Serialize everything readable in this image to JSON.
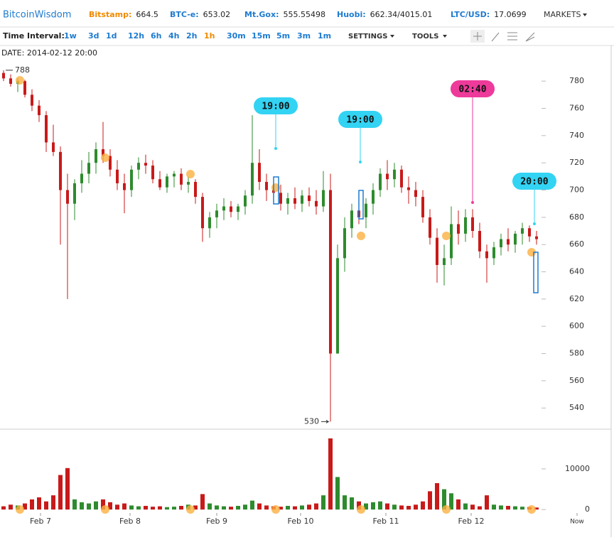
{
  "header": {
    "brand": "BitcoinWisdom",
    "tickers": [
      {
        "label": "Bitstamp:",
        "value": "664.5",
        "color": "#f08a00"
      },
      {
        "label": "BTC-e:",
        "value": "653.02",
        "color": "#1e7bd0"
      },
      {
        "label": "Mt.Gox:",
        "value": "555.55498",
        "color": "#1e7bd0"
      },
      {
        "label": "Huobi:",
        "value": "662.34/4015.01",
        "color": "#1e7bd0"
      },
      {
        "label": "LTC/USD:",
        "value": "17.0699",
        "color": "#1e7bd0"
      }
    ],
    "markets": "MARKETS"
  },
  "toolbar": {
    "label": "Time Interval:",
    "intervals": [
      "1w",
      "3d",
      "1d",
      "12h",
      "6h",
      "4h",
      "2h",
      "1h",
      "30m",
      "15m",
      "5m",
      "3m",
      "1m"
    ],
    "active_index": 7,
    "settings": "SETTINGS",
    "tools": "TOOLS"
  },
  "chart_data": {
    "type": "candlestick",
    "date_label": "DATE: 2014-02-12 20:00",
    "up_color": "#2e8b2e",
    "down_color": "#c81a1a",
    "candles": [
      [
        786,
        788,
        780,
        782
      ],
      [
        782,
        785,
        776,
        778
      ],
      [
        778,
        782,
        772,
        780
      ],
      [
        780,
        781,
        768,
        770
      ],
      [
        770,
        774,
        758,
        762
      ],
      [
        762,
        766,
        750,
        755
      ],
      [
        755,
        758,
        728,
        735
      ],
      [
        735,
        748,
        725,
        728
      ],
      [
        728,
        732,
        660,
        700
      ],
      [
        700,
        712,
        620,
        690
      ],
      [
        690,
        708,
        678,
        705
      ],
      [
        705,
        722,
        698,
        712
      ],
      [
        712,
        728,
        705,
        720
      ],
      [
        720,
        735,
        712,
        730
      ],
      [
        730,
        750,
        720,
        725
      ],
      [
        725,
        730,
        710,
        715
      ],
      [
        715,
        722,
        700,
        705
      ],
      [
        705,
        712,
        683,
        700
      ],
      [
        700,
        718,
        695,
        715
      ],
      [
        715,
        724,
        708,
        720
      ],
      [
        720,
        726,
        712,
        718
      ],
      [
        718,
        722,
        705,
        708
      ],
      [
        708,
        714,
        700,
        702
      ],
      [
        702,
        712,
        698,
        710
      ],
      [
        710,
        714,
        702,
        712
      ],
      [
        712,
        716,
        700,
        704
      ],
      [
        704,
        710,
        698,
        706
      ],
      [
        706,
        708,
        690,
        695
      ],
      [
        695,
        698,
        662,
        672
      ],
      [
        672,
        684,
        665,
        680
      ],
      [
        680,
        690,
        672,
        685
      ],
      [
        685,
        694,
        678,
        688
      ],
      [
        688,
        692,
        680,
        684
      ],
      [
        684,
        690,
        678,
        688
      ],
      [
        688,
        700,
        682,
        696
      ],
      [
        696,
        755,
        690,
        720
      ],
      [
        720,
        730,
        700,
        706
      ],
      [
        706,
        712,
        692,
        700
      ],
      [
        700,
        708,
        692,
        698
      ],
      [
        698,
        704,
        685,
        690
      ],
      [
        690,
        698,
        682,
        694
      ],
      [
        694,
        702,
        686,
        690
      ],
      [
        690,
        700,
        684,
        696
      ],
      [
        696,
        702,
        688,
        692
      ],
      [
        692,
        700,
        682,
        688
      ],
      [
        688,
        714,
        684,
        700
      ],
      [
        700,
        712,
        530,
        580
      ],
      [
        580,
        660,
        580,
        650
      ],
      [
        650,
        680,
        640,
        672
      ],
      [
        672,
        690,
        665,
        685
      ],
      [
        685,
        696,
        675,
        680
      ],
      [
        680,
        694,
        672,
        690
      ],
      [
        690,
        705,
        682,
        700
      ],
      [
        700,
        716,
        695,
        712
      ],
      [
        712,
        722,
        700,
        708
      ],
      [
        708,
        720,
        702,
        715
      ],
      [
        715,
        718,
        698,
        702
      ],
      [
        702,
        710,
        690,
        700
      ],
      [
        700,
        706,
        688,
        695
      ],
      [
        695,
        700,
        676,
        680
      ],
      [
        680,
        686,
        660,
        665
      ],
      [
        665,
        672,
        632,
        645
      ],
      [
        645,
        660,
        630,
        650
      ],
      [
        650,
        688,
        645,
        675
      ],
      [
        675,
        685,
        660,
        668
      ],
      [
        668,
        686,
        662,
        680
      ],
      [
        680,
        686,
        665,
        670
      ],
      [
        670,
        676,
        650,
        655
      ],
      [
        655,
        660,
        632,
        650
      ],
      [
        650,
        662,
        645,
        658
      ],
      [
        658,
        668,
        652,
        664
      ],
      [
        664,
        672,
        655,
        660
      ],
      [
        660,
        670,
        654,
        668
      ],
      [
        668,
        676,
        660,
        672
      ],
      [
        672,
        674,
        662,
        666
      ],
      [
        666,
        670,
        660,
        664
      ]
    ],
    "volume": [
      800,
      1200,
      1000,
      1500,
      2500,
      3000,
      2000,
      3500,
      8500,
      10200,
      2500,
      1800,
      1500,
      2000,
      2500,
      1800,
      1200,
      1500,
      1000,
      800,
      900,
      700,
      800,
      600,
      700,
      900,
      1200,
      1000,
      3800,
      1500,
      1000,
      800,
      700,
      900,
      1200,
      2200,
      1500,
      1000,
      800,
      700,
      900,
      800,
      1000,
      1200,
      1500,
      3500,
      17500,
      8000,
      3500,
      3000,
      2000,
      1500,
      1800,
      2000,
      1500,
      1200,
      1000,
      900,
      1200,
      2000,
      4500,
      6500,
      5000,
      4000,
      2500,
      1500,
      1200,
      800,
      3500,
      1200,
      1000,
      900,
      800,
      700,
      600,
      500
    ],
    "xlim": [
      -0.5,
      85.9
    ],
    "xticks": [
      {
        "value": 5.2,
        "label": "Feb 7"
      },
      {
        "value": 17.8,
        "label": "Feb 8"
      },
      {
        "value": 30,
        "label": "Feb 9"
      },
      {
        "value": 41.8,
        "label": "Feb 10"
      },
      {
        "value": 53.8,
        "label": "Feb 11"
      },
      {
        "value": 65.8,
        "label": "Feb 12"
      },
      {
        "value": 80.7,
        "label": "Now"
      }
    ],
    "ylim": [
      525,
      790
    ],
    "yticks": [
      540,
      560,
      580,
      600,
      620,
      640,
      660,
      680,
      700,
      720,
      740,
      760,
      780
    ],
    "vol_ylim": [
      -500,
      19600
    ],
    "vol_yticks": [
      0,
      10000
    ],
    "high_marker": 788,
    "low_marker": 530,
    "annotations": [
      {
        "label": "19:00",
        "color": "#33d3f3"
      },
      {
        "label": "19:00",
        "color": "#33d3f3"
      },
      {
        "label": "02:40",
        "color": "#ee3a9a"
      },
      {
        "label": "20:00",
        "color": "#33d3f3"
      }
    ]
  }
}
